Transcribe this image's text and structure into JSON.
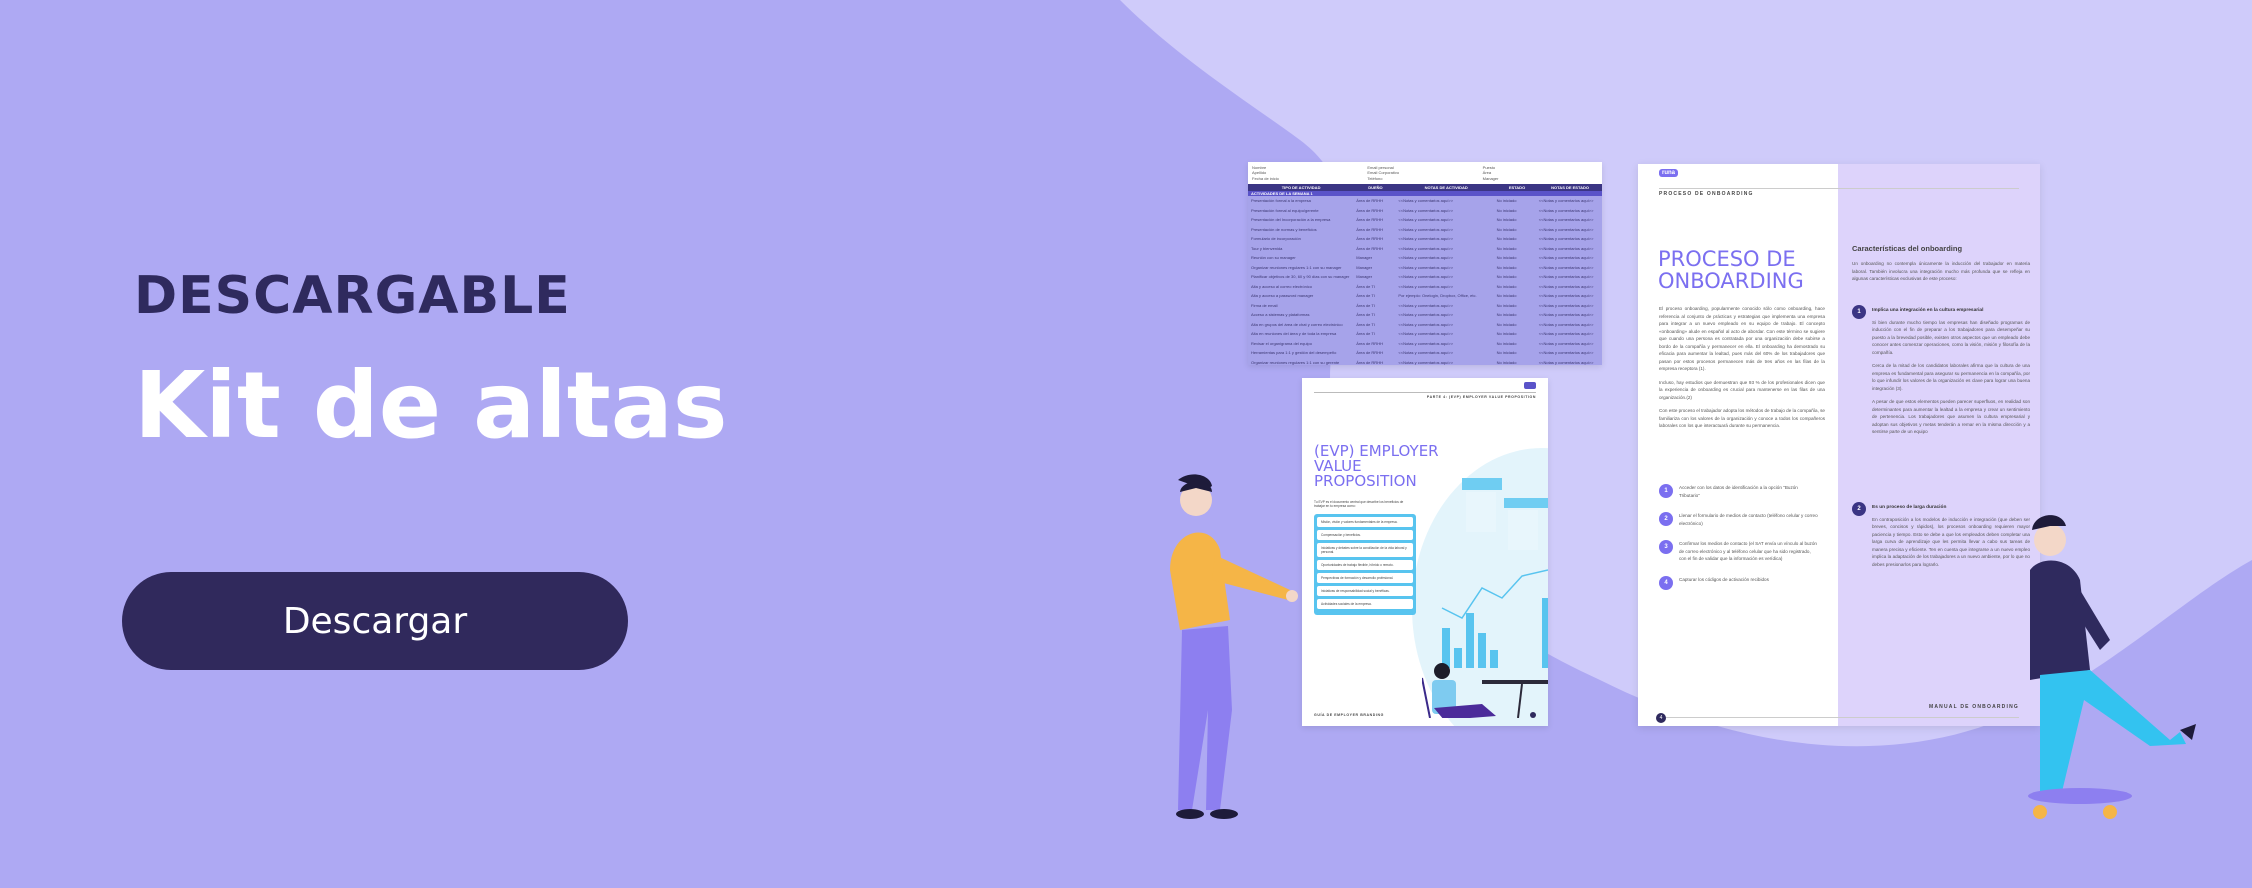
{
  "banner": {
    "eyebrow": "DESCARGABLE",
    "title": "Kit de altas",
    "button": "Descargar"
  },
  "colors": {
    "background": "#aea9f3",
    "wave": "#cfcbfa",
    "dark": "#30295c",
    "accent": "#7b6ff0"
  },
  "spreadsheet": {
    "meta": [
      [
        "Nombre",
        "Email personal",
        "Puesto"
      ],
      [
        "Apellido",
        "Email Corporativo",
        "Área"
      ],
      [
        "Fecha de inicio",
        "Teléfono",
        "Manager"
      ]
    ],
    "headers": [
      "TIPO DE ACTIVIDAD",
      "DUEÑO",
      "NOTAS DE ACTIVIDAD",
      "ESTADO",
      "NOTAS DE ESTADO"
    ],
    "section": "ACTIVIDADES DE LA SEMANA 1",
    "rows": [
      [
        "Presentación formal a la empresa",
        "Área de RRHH",
        "<<Notas y comentarios aquí>>",
        "No iniciado",
        "<<Notas y comentarios aquí>>"
      ],
      [
        "Presentación formal al equipo/gerente",
        "Área de RRHH",
        "<<Notas y comentarios aquí>>",
        "No iniciado",
        "<<Notas y comentarios aquí>>"
      ],
      [
        "Presentación del Incorporación a la empresa",
        "Área de RRHH",
        "<<Notas y comentarios aquí>>",
        "No iniciado",
        "<<Notas y comentarios aquí>>"
      ],
      [
        "Presentación de normas y beneficios",
        "Área de RRHH",
        "<<Notas y comentarios aquí>>",
        "No iniciado",
        "<<Notas y comentarios aquí>>"
      ],
      [
        "Formulario de incorporación",
        "Área de RRHH",
        "<<Notas y comentarios aquí>>",
        "No iniciado",
        "<<Notas y comentarios aquí>>"
      ],
      [
        "Tour y bienvenida",
        "Área de RRHH",
        "<<Notas y comentarios aquí>>",
        "No iniciado",
        "<<Notas y comentarios aquí>>"
      ],
      [
        "Reunión con su manager",
        "Manager",
        "<<Notas y comentarios aquí>>",
        "No iniciado",
        "<<Notas y comentarios aquí>>"
      ],
      [
        "Organizar reuniones regulares 1:1 con su manager",
        "Manager",
        "<<Notas y comentarios aquí>>",
        "No iniciado",
        "<<Notas y comentarios aquí>>"
      ],
      [
        "Planificar objetivos de 30, 60 y 90 días con su manager",
        "Manager",
        "<<Notas y comentarios aquí>>",
        "No iniciado",
        "<<Notas y comentarios aquí>>"
      ],
      [
        "Alta y acceso al correo electrónico",
        "Área de TI",
        "<<Notas y comentarios aquí>>",
        "No iniciado",
        "<<Notas y comentarios aquí>>"
      ],
      [
        "Alta y acceso a password manager",
        "Área de TI",
        "Por ejemplo: Onelogin, Dropbox, Office, etc.",
        "No iniciado",
        "<<Notas y comentarios aquí>>"
      ],
      [
        "Firma de email",
        "Área de TI",
        "<<Notas y comentarios aquí>>",
        "No iniciado",
        "<<Notas y comentarios aquí>>"
      ],
      [
        "Acceso a sistemas y plataformas",
        "Área de TI",
        "<<Notas y comentarios aquí>>",
        "No iniciado",
        "<<Notas y comentarios aquí>>"
      ],
      [
        "Alta en grupos del área de chat y correo electrónico",
        "Área de TI",
        "<<Notas y comentarios aquí>>",
        "No iniciado",
        "<<Notas y comentarios aquí>>"
      ],
      [
        "Alta en reuniones del área y de toda la empresa",
        "Área de TI",
        "<<Notas y comentarios aquí>>",
        "No iniciado",
        "<<Notas y comentarios aquí>>"
      ],
      [
        "Revisar el organigrama del equipo",
        "Área de RRHH",
        "<<Notas y comentarios aquí>>",
        "No iniciado",
        "<<Notas y comentarios aquí>>"
      ],
      [
        "Herramientas para 1:1 y gestión del desempeño",
        "Área de RRHH",
        "<<Notas y comentarios aquí>>",
        "No iniciado",
        "<<Notas y comentarios aquí>>"
      ],
      [
        "Organizar reuniones regulares 1:1 con su gerente",
        "Área de RRHH",
        "<<Notas y comentarios aquí>>",
        "No iniciado",
        "<<Notas y comentarios aquí>>"
      ]
    ]
  },
  "evp": {
    "logo": "runa",
    "part": "PARTE 4: (EVP) EMPLOYER VALUE PROPOSITION",
    "title": "(EVP) EMPLOYER VALUE PROPOSITION",
    "intro": "Tu EVP es el documento central que describe los beneficios de trabajar en tu empresa como:",
    "items": [
      "Misión, visión y valores fundamentales de la empresa.",
      "Compensación y beneficios.",
      "Iniciativas y debates sobre la conciliación de la vida laboral y personal.",
      "Oportunidades de trabajo flexible, híbrido o remoto.",
      "Perspectivas de formación y desarrollo profesional.",
      "Iniciativas de responsabilidad social y benéficas.",
      "Actividades sociales de la empresa."
    ],
    "footer": "GUÍA DE EMPLOYER BRANDING",
    "page": "5"
  },
  "onboarding": {
    "logo": "runa",
    "section": "PROCESO DE ONBOARDING",
    "title": "PROCESO DE ONBOARDING",
    "paragraphs": [
      "El proceso onboarding, popularmente conocido sólo como onboarding, hace referencia al conjunto de prácticas y estrategias que implementa una empresa para integrar a un nuevo empleado en su equipo de trabajo. El concepto «onboarding» alude en español al acto de abordar. Con este término se sugiere que cuando una persona es contratada por una organización debe subirse a bordo de la compañía y permanecer en ella. El onboarding ha demostrado su eficacia para aumentar la lealtad, pues más del 60% de los trabajadores que pasan por estos procesos permanecen más de tres años en las filas de la empresa receptora (1).",
      "Incluso, hay estudios que demuestran que 93 % de los profesionales dicen que la experiencia de onboarding es crucial para mantenerse en las filas de una organización.(2)",
      "Con este proceso el trabajador adopta los métodos de trabajo de la compañía, se familiariza con los valores de la organización y conoce a todos los compañeros laborales con los que interactuará durante su permanencia."
    ],
    "steps": [
      {
        "n": "1",
        "text": "Acceder con los datos de identificación a la opción \"Buzón Tributario\""
      },
      {
        "n": "2",
        "text": "Llenar el formulario de medios de contacto (teléfono celular y correo electrónico)"
      },
      {
        "n": "3",
        "text": "Confirmar los medios de contacto (el SAT envía un vínculo al buzón de correo electrónico y al teléfono celular que ha sido registrado, con el fin de validar que la información es verídica)"
      },
      {
        "n": "4",
        "text": "Capturar los códigos de activación recibidos"
      }
    ],
    "right_title": "Características del onboarding",
    "right_intro": "Un onboarding no contempla únicamente la inducción del trabajador en materia laboral. También involucra una integración mucho más profunda que se refleja en algunas características exclusivas de este proceso:",
    "features": [
      {
        "n": "1",
        "title": "Implica una integración en la cultura empresarial",
        "paragraphs": [
          "Si bien durante mucho tiempo las empresas han diseñado programas de inducción con el fin de preparar a los trabajadores para desempeñar su puesto a la brevedad posible, existen otros aspectos que un empleado debe conocer antes comenzar operaciones, como la visión, misión y filosofía de la compañía.",
          "Cerca de la mitad de los candidatos laborales afirma que la cultura de una empresa es fundamental para asegurar su permanencia en la compañía, por lo que infundir los valores de la organización es clave para lograr una buena integración (3).",
          "A pesar de que estos elementos pueden parecer superfluos, en realidad son determinantes para aumentar la lealtad a la empresa y crear un sentimiento de pertenencia. Los trabajadores que asumen la cultura empresarial y adoptan sus objetivos y metas tenderán a remar en la misma dirección y a sentirse parte de un equipo"
        ]
      },
      {
        "n": "2",
        "title": "Es un proceso de larga duración",
        "paragraphs": [
          "En contraposición a los modelos de inducción e integración (que deben ser breves, concisos y rápidos), los procesos onboarding requieren mayor paciencia y tiempo. Esto se debe a que los empleados deben completar una larga curva de aprendizaje que les permita llevar a cabo sus tareas de manera precisa y eficiente. Ten en cuenta que integrarse a un nuevo empleo implica la adaptación de los trabajadores a un nuevo ambiente, por lo que no debes presionarlos para lograrlo."
        ]
      }
    ],
    "page": "4",
    "footer": "MANUAL DE ONBOARDING"
  }
}
